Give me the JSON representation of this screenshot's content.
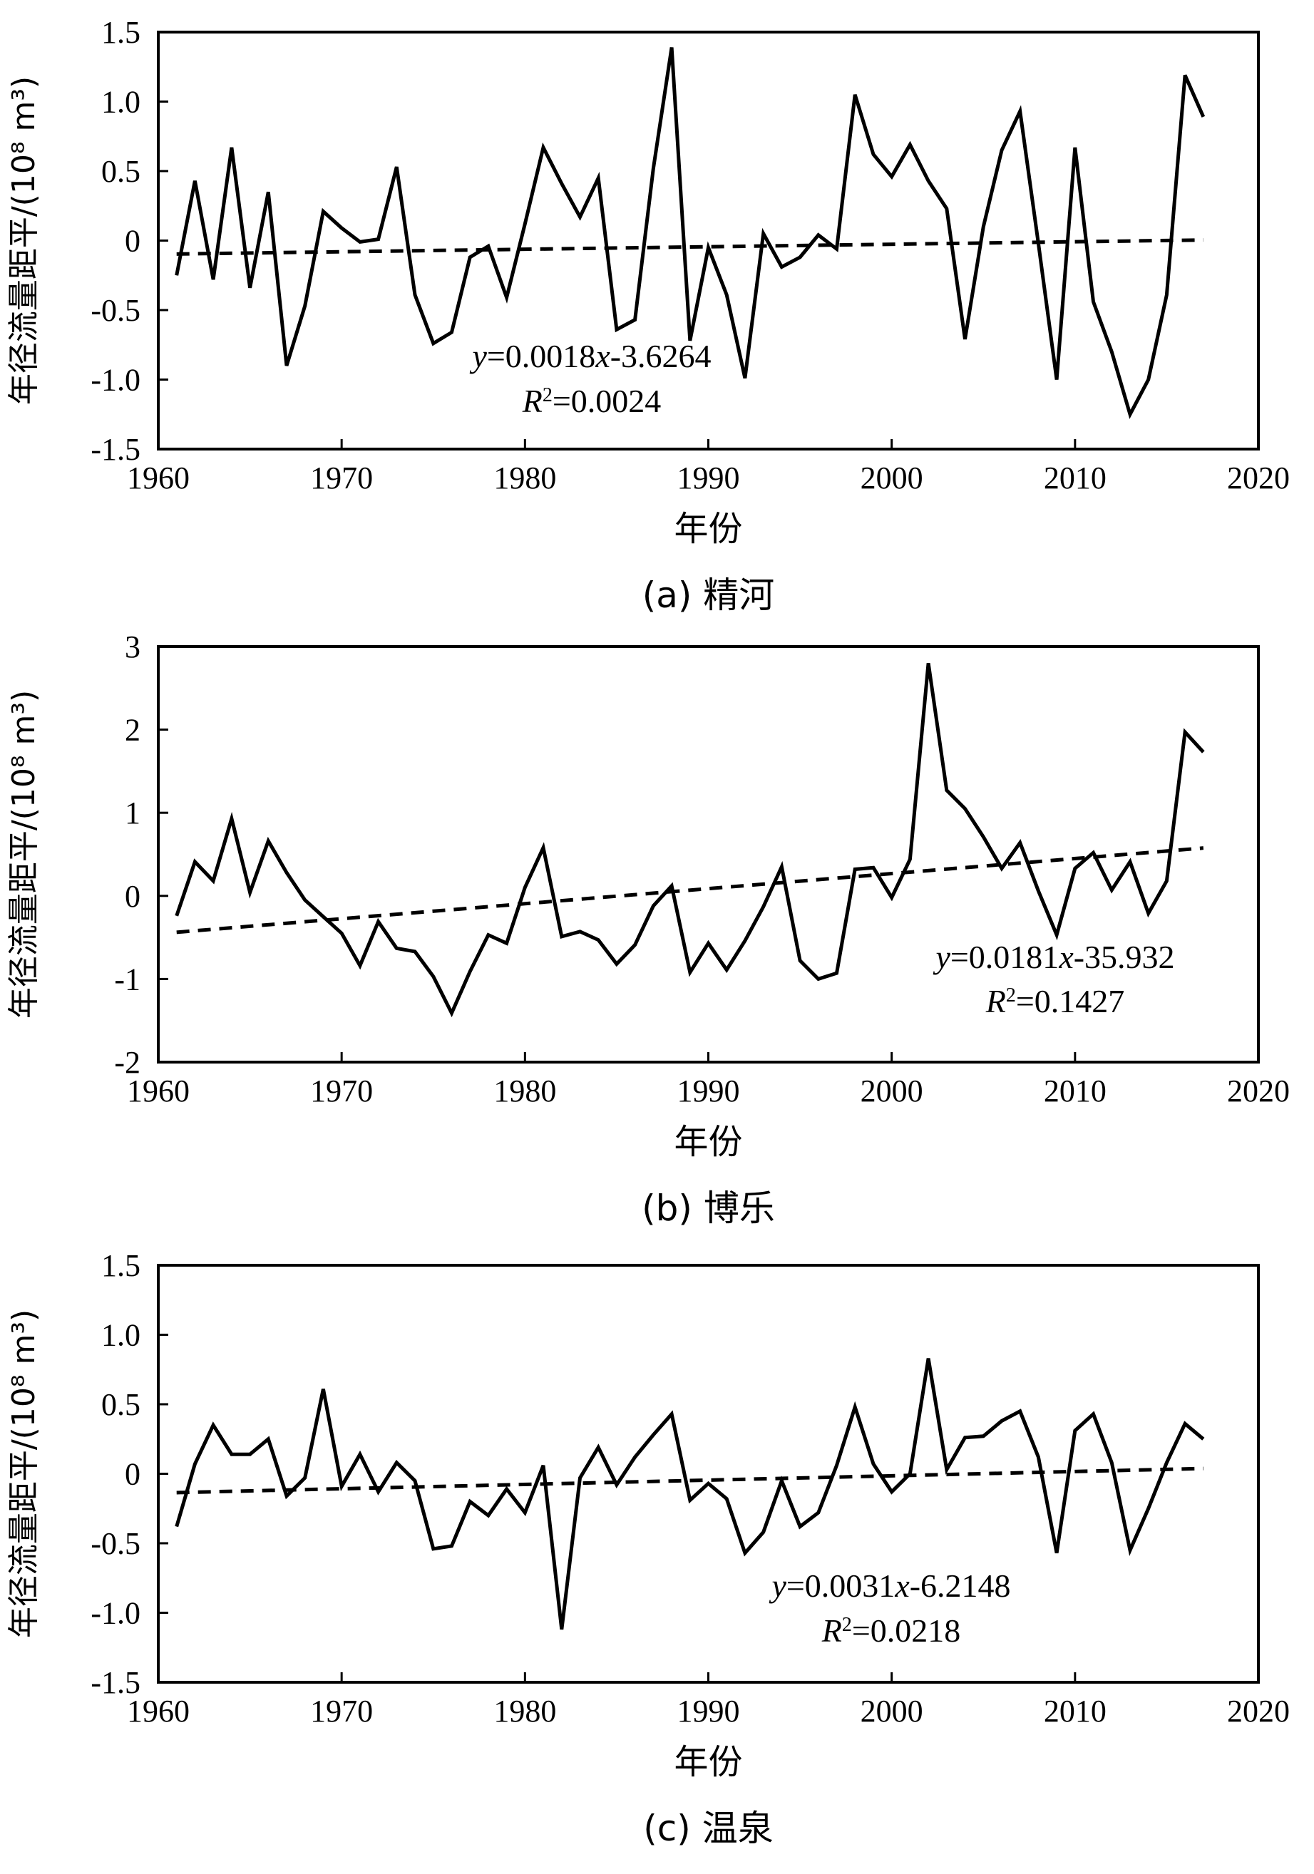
{
  "chart_data": [
    {
      "type": "line",
      "panel": "a",
      "caption": "(a) 精河",
      "xlabel": "年份",
      "ylabel": "年径流量距平/(10⁸ m³)",
      "xlim": [
        1960,
        2020
      ],
      "ylim": [
        -1.5,
        1.5
      ],
      "xticks": [
        1960,
        1970,
        1980,
        1990,
        2000,
        2010,
        2020
      ],
      "yticks": [
        1.5,
        1.0,
        0.5,
        0,
        -0.5,
        -1.0,
        -1.5
      ],
      "ytick_labels": [
        "1.5",
        "1.0",
        "0.5",
        "0",
        "-0.5",
        "-1.0",
        "-1.5"
      ],
      "grid": false,
      "series": [
        {
          "x": [
            1961,
            1962,
            1963,
            1964,
            1965,
            1966,
            1967,
            1968,
            1969,
            1970,
            1971,
            1972,
            1973,
            1974,
            1975,
            1976,
            1977,
            1978,
            1979,
            1980,
            1981,
            1982,
            1983,
            1984,
            1985,
            1986,
            1987,
            1988,
            1989,
            1990,
            1991,
            1992,
            1993,
            1994,
            1995,
            1996,
            1997,
            1998,
            1999,
            2000,
            2001,
            2002,
            2003,
            2004,
            2005,
            2006,
            2007,
            2008,
            2009,
            2010,
            2011,
            2012,
            2013,
            2014,
            2015,
            2016,
            2017
          ],
          "y": [
            -0.25,
            0.43,
            -0.28,
            0.67,
            -0.34,
            0.35,
            -0.9,
            -0.47,
            0.21,
            0.09,
            -0.01,
            0.01,
            0.53,
            -0.39,
            -0.74,
            -0.66,
            -0.12,
            -0.04,
            -0.41,
            0.12,
            0.67,
            0.41,
            0.17,
            0.45,
            -0.64,
            -0.57,
            0.52,
            1.39,
            -0.72,
            -0.05,
            -0.39,
            -0.99,
            0.05,
            -0.19,
            -0.12,
            0.04,
            -0.06,
            1.05,
            0.62,
            0.46,
            0.69,
            0.43,
            0.23,
            -0.71,
            0.1,
            0.65,
            0.93,
            -0.02,
            -1.0,
            0.67,
            -0.44,
            -0.8,
            -1.25,
            -1.0,
            -0.39,
            1.19,
            0.89
          ]
        }
      ],
      "trend": {
        "slope": 0.0018,
        "intercept": -3.6264
      },
      "equation": {
        "y_var": "y",
        "eq1": "=0.0018",
        "x_var": "x",
        "eq2": "-3.6264",
        "r_var": "R",
        "r_sup": "2",
        "r_val": "=0.0024"
      }
    },
    {
      "type": "line",
      "panel": "b",
      "caption": "(b) 博乐",
      "xlabel": "年份",
      "ylabel": "年径流量距平/(10⁸ m³)",
      "xlim": [
        1960,
        2020
      ],
      "ylim": [
        -2,
        3
      ],
      "xticks": [
        1960,
        1970,
        1980,
        1990,
        2000,
        2010,
        2020
      ],
      "yticks": [
        3,
        2,
        1,
        0,
        -1,
        -2
      ],
      "ytick_labels": [
        "3",
        "2",
        "1",
        "0",
        "-1",
        "-2"
      ],
      "grid": false,
      "series": [
        {
          "x": [
            1961,
            1962,
            1963,
            1964,
            1965,
            1966,
            1967,
            1968,
            1969,
            1970,
            1971,
            1972,
            1973,
            1974,
            1975,
            1976,
            1977,
            1978,
            1979,
            1980,
            1981,
            1982,
            1983,
            1984,
            1985,
            1986,
            1987,
            1988,
            1989,
            1990,
            1991,
            1992,
            1993,
            1994,
            1995,
            1996,
            1997,
            1998,
            1999,
            2000,
            2001,
            2002,
            2003,
            2004,
            2005,
            2006,
            2007,
            2008,
            2009,
            2010,
            2011,
            2012,
            2013,
            2014,
            2015,
            2016,
            2017
          ],
          "y": [
            -0.24,
            0.41,
            0.18,
            0.93,
            0.04,
            0.66,
            0.28,
            -0.05,
            -0.25,
            -0.45,
            -0.84,
            -0.31,
            -0.63,
            -0.67,
            -0.97,
            -1.41,
            -0.91,
            -0.47,
            -0.57,
            0.1,
            0.58,
            -0.49,
            -0.43,
            -0.53,
            -0.82,
            -0.59,
            -0.12,
            0.12,
            -0.92,
            -0.57,
            -0.89,
            -0.54,
            -0.13,
            0.35,
            -0.78,
            -1.0,
            -0.93,
            0.32,
            0.34,
            -0.02,
            0.44,
            2.8,
            1.27,
            1.05,
            0.71,
            0.33,
            0.64,
            0.06,
            -0.47,
            0.33,
            0.52,
            0.07,
            0.41,
            -0.21,
            0.18,
            1.97,
            1.73
          ]
        }
      ],
      "trend": {
        "slope": 0.0181,
        "intercept": -35.932
      },
      "equation": {
        "y_var": "y",
        "eq1": "=0.0181",
        "x_var": "x",
        "eq2": "-35.932",
        "r_var": "R",
        "r_sup": "2",
        "r_val": "=0.1427"
      }
    },
    {
      "type": "line",
      "panel": "c",
      "caption": "(c) 温泉",
      "xlabel": "年份",
      "ylabel": "年径流量距平/(10⁸ m³)",
      "xlim": [
        1960,
        2020
      ],
      "ylim": [
        -1.5,
        1.5
      ],
      "xticks": [
        1960,
        1970,
        1980,
        1990,
        2000,
        2010,
        2020
      ],
      "yticks": [
        1.5,
        1.0,
        0.5,
        0,
        -0.5,
        -1.0,
        -1.5
      ],
      "ytick_labels": [
        "1.5",
        "1.0",
        "0.5",
        "0",
        "-0.5",
        "-1.0",
        "-1.5"
      ],
      "grid": false,
      "series": [
        {
          "x": [
            1961,
            1962,
            1963,
            1964,
            1965,
            1966,
            1967,
            1968,
            1969,
            1970,
            1971,
            1972,
            1973,
            1974,
            1975,
            1976,
            1977,
            1978,
            1979,
            1980,
            1981,
            1982,
            1983,
            1984,
            1985,
            1986,
            1987,
            1988,
            1989,
            1990,
            1991,
            1992,
            1993,
            1994,
            1995,
            1996,
            1997,
            1998,
            1999,
            2000,
            2001,
            2002,
            2003,
            2004,
            2005,
            2006,
            2007,
            2008,
            2009,
            2010,
            2011,
            2012,
            2013,
            2014,
            2015,
            2016,
            2017
          ],
          "y": [
            -0.38,
            0.07,
            0.35,
            0.14,
            0.14,
            0.25,
            -0.16,
            -0.03,
            0.61,
            -0.09,
            0.14,
            -0.13,
            0.08,
            -0.05,
            -0.54,
            -0.52,
            -0.2,
            -0.3,
            -0.11,
            -0.28,
            0.06,
            -1.12,
            -0.03,
            0.19,
            -0.08,
            0.12,
            0.28,
            0.43,
            -0.19,
            -0.07,
            -0.18,
            -0.57,
            -0.42,
            -0.05,
            -0.38,
            -0.28,
            0.06,
            0.48,
            0.07,
            -0.13,
            0.0,
            0.83,
            0.03,
            0.26,
            0.27,
            0.38,
            0.45,
            0.12,
            -0.57,
            0.31,
            0.43,
            0.08,
            -0.55,
            -0.25,
            0.08,
            0.36,
            0.25
          ]
        }
      ],
      "trend": {
        "slope": 0.0031,
        "intercept": -6.2148
      },
      "equation": {
        "y_var": "y",
        "eq1": "=0.0031",
        "x_var": "x",
        "eq2": "-6.2148",
        "r_var": "R",
        "r_sup": "2",
        "r_val": "=0.0218"
      }
    }
  ]
}
